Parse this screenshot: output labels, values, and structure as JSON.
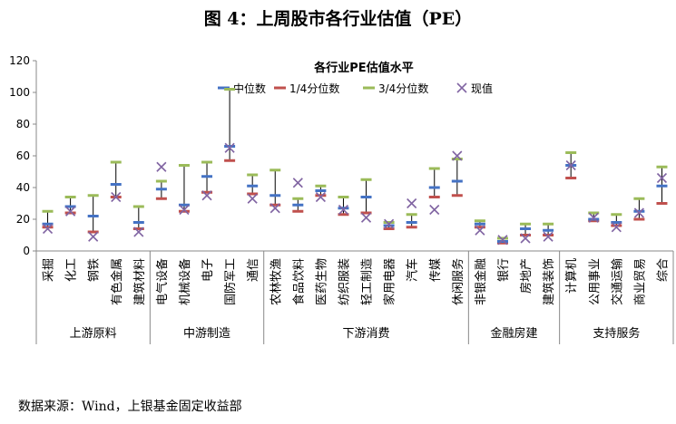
{
  "figure_title": "图 4：上周股市各行业估值（PE）",
  "source": "数据来源：Wind，上银基金固定收益部",
  "chart_data": {
    "type": "scatter",
    "title": "各行业PE估值水平",
    "ylim": [
      0,
      120
    ],
    "yticks": [
      0,
      20,
      40,
      60,
      80,
      100,
      120
    ],
    "grid": false,
    "legend_position": "top",
    "categories": [
      "采掘",
      "化工",
      "钢铁",
      "有色金属",
      "建筑材料",
      "电气设备",
      "机械设备",
      "电子",
      "国防军工",
      "通信",
      "农林牧渔",
      "食品饮料",
      "医药生物",
      "纺织服装",
      "轻工制造",
      "家用电器",
      "汽车",
      "传媒",
      "休闲服务",
      "非银金融",
      "银行",
      "房地产",
      "建筑装饰",
      "计算机",
      "公用事业",
      "交通运输",
      "商业贸易",
      "综合"
    ],
    "groups": [
      {
        "name": "上游原料",
        "count": 5
      },
      {
        "name": "中游制造",
        "count": 5
      },
      {
        "name": "下游消费",
        "count": 9
      },
      {
        "name": "金融房建",
        "count": 4
      },
      {
        "name": "支持服务",
        "count": 5
      }
    ],
    "series": [
      {
        "name": "中位数",
        "color": "#4472C4",
        "values": [
          17,
          28,
          22,
          42,
          18,
          39,
          29,
          47,
          66,
          41,
          35,
          29,
          38,
          27,
          34,
          16,
          18,
          40,
          44,
          17,
          6,
          14,
          13,
          54,
          20,
          18,
          25,
          41
        ]
      },
      {
        "name": "1/4分位数",
        "color": "#C0504D",
        "values": [
          15,
          24,
          12,
          34,
          14,
          33,
          25,
          37,
          57,
          36,
          29,
          25,
          35,
          23,
          24,
          14,
          15,
          34,
          35,
          15,
          5,
          10,
          10,
          46,
          19,
          16,
          20,
          30
        ]
      },
      {
        "name": "3/4分位数",
        "color": "#9BBB59",
        "values": [
          25,
          34,
          35,
          56,
          28,
          44,
          54,
          56,
          102,
          48,
          51,
          33,
          41,
          34,
          45,
          18,
          23,
          52,
          58,
          19,
          8,
          17,
          17,
          62,
          24,
          23,
          33,
          53
        ]
      },
      {
        "name": "现值",
        "color": "#8064A2",
        "values": [
          14,
          25,
          9,
          34,
          12,
          53,
          26,
          35,
          65,
          33,
          27,
          43,
          34,
          26,
          21,
          17,
          30,
          26,
          60,
          13,
          7,
          8,
          9,
          54,
          21,
          15,
          24,
          46
        ]
      }
    ]
  }
}
